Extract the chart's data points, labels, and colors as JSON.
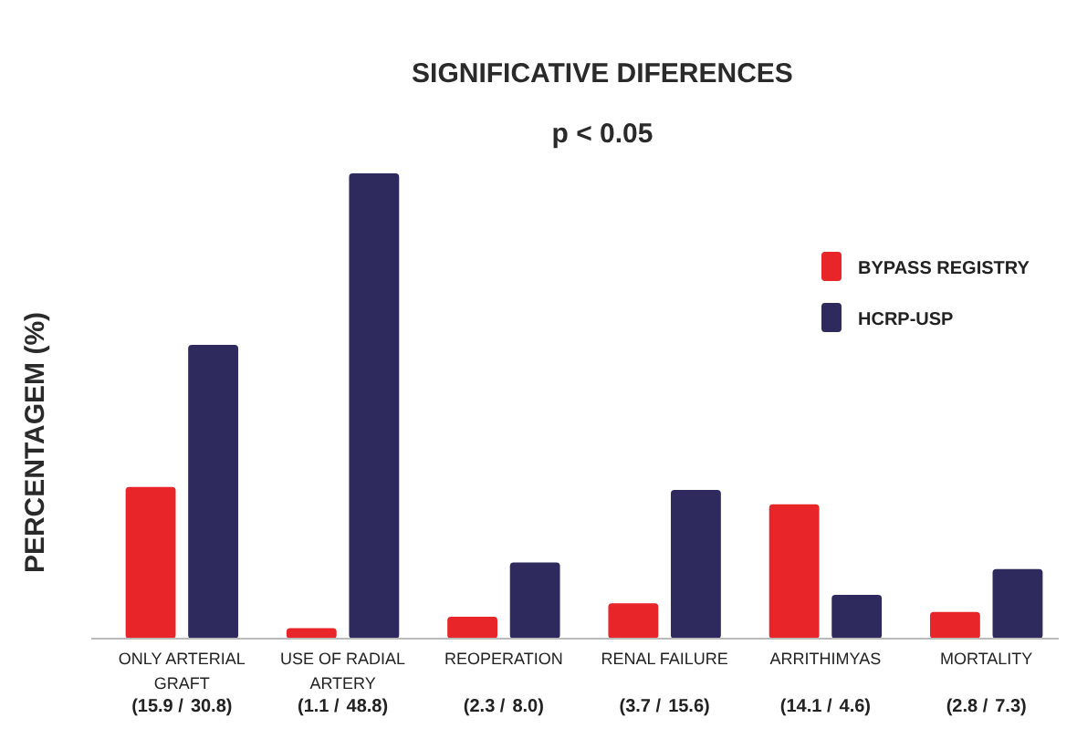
{
  "chart_data": {
    "type": "bar",
    "title": "SIGNIFICATIVE DIFERENCES",
    "subtitle": "p < 0.05",
    "ylabel": "PERCENTAGEM (%)",
    "categories": [
      "ONLY ARTERIAL GRAFT",
      "USE OF RADIAL ARTERY",
      "REOPERATION",
      "RENAL FAILURE",
      "ARRITHIMYAS",
      "MORTALITY"
    ],
    "series": [
      {
        "name": "BYPASS REGISTRY",
        "color": "#e8262a",
        "values": [
          15.9,
          1.1,
          2.3,
          3.7,
          14.1,
          2.8
        ],
        "value_labels": [
          "(15.9 /",
          "(1.1 /",
          "(2.3 /",
          "(3.7 /",
          "(14.1 /",
          "(2.8 /"
        ]
      },
      {
        "name": "HCRP-USP",
        "color": "#2e2a5e",
        "values": [
          30.8,
          48.8,
          8.0,
          15.6,
          4.6,
          7.3
        ],
        "value_labels": [
          "30.8)",
          "48.8)",
          "8.0)",
          "15.6)",
          "4.6)",
          "7.3)"
        ]
      }
    ],
    "legend": "top right"
  }
}
